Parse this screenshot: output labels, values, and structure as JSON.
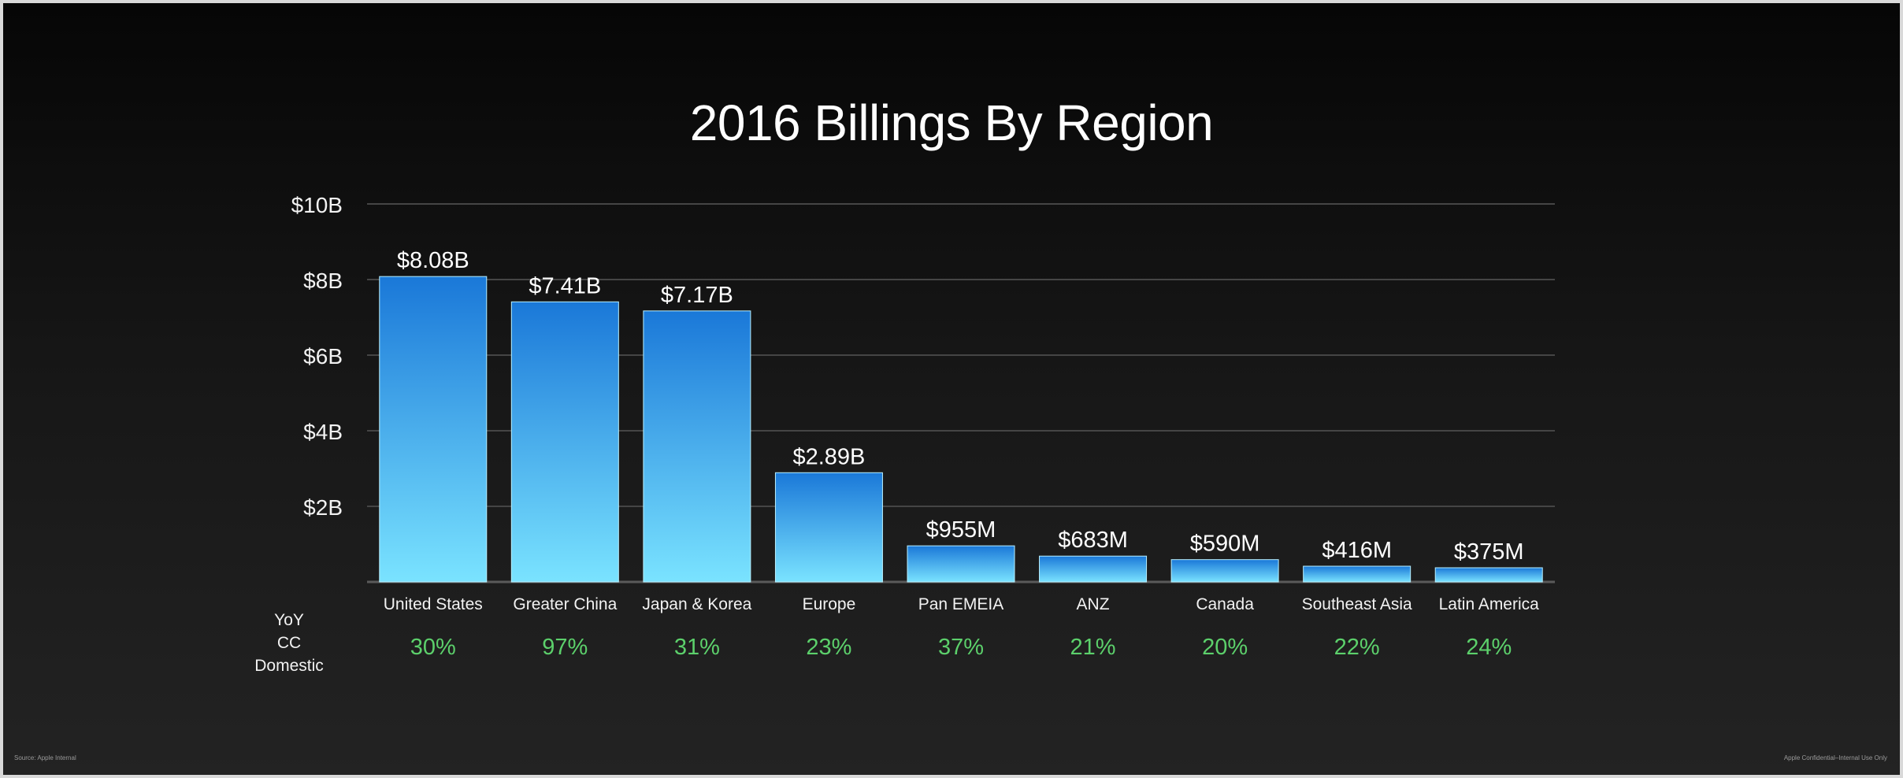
{
  "slide": {
    "title": "2016 Billings By Region",
    "footer_left": "Source: Apple Internal",
    "footer_right": "Apple Confidential–Internal Use Only",
    "background_color": "#111111",
    "accent_color": "#27b8ff",
    "bar_top_color": "#1a78d8",
    "bar_bottom_color": "#7ae3ff",
    "growth_color": "#5cd06b"
  },
  "chart_data": {
    "type": "bar",
    "title": "2016 Billings By Region",
    "categories": [
      "United States",
      "Greater China",
      "Japan & Korea",
      "Europe",
      "Pan EMEIA",
      "ANZ",
      "Canada",
      "Southeast Asia",
      "Latin America"
    ],
    "values": [
      8.08,
      7.41,
      7.17,
      2.89,
      0.955,
      0.683,
      0.59,
      0.416,
      0.375
    ],
    "value_labels": [
      "$8.08B",
      "$7.41B",
      "$7.17B",
      "$2.89B",
      "$955M",
      "$683M",
      "$590M",
      "$416M",
      "$375M"
    ],
    "yoy_label_lines": [
      "YoY",
      "CC",
      "Domestic"
    ],
    "yoy_values": [
      "30%",
      "97%",
      "31%",
      "23%",
      "37%",
      "21%",
      "20%",
      "22%",
      "24%"
    ],
    "xlabel": "",
    "ylabel": "",
    "ylim": [
      0,
      10
    ],
    "y_ticks": [
      {
        "value": 2,
        "label": "$2B"
      },
      {
        "value": 4,
        "label": "$4B"
      },
      {
        "value": 6,
        "label": "$6B"
      },
      {
        "value": 8,
        "label": "$8B"
      },
      {
        "value": 10,
        "label": "$10B"
      }
    ],
    "grid": true,
    "legend": "none"
  }
}
